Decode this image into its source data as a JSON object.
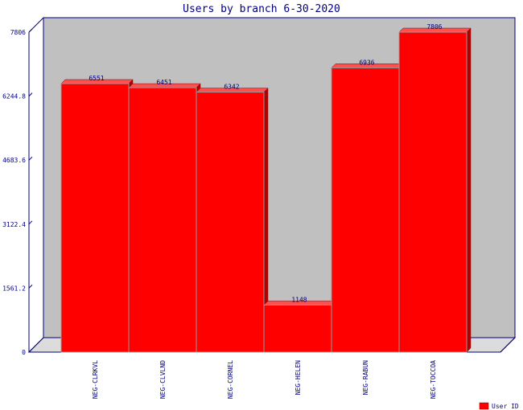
{
  "chart_data": {
    "type": "bar",
    "title": "Users by branch 6-30-2020",
    "xlabel": "",
    "ylabel": "",
    "categories": [
      "NEG-CLRKVL",
      "NEG-CLVLND",
      "NEG-CORNEL",
      "NEG-HELEN",
      "NEG-RABUN",
      "NEG-TOCCOA"
    ],
    "series": [
      {
        "name": "User ID",
        "values": [
          6551,
          6451,
          6342,
          1148,
          6936,
          7806
        ]
      }
    ],
    "ylim": [
      0,
      7806
    ],
    "yticks": [
      0,
      1561.2,
      3122.4,
      4683.6,
      6244.8,
      7806
    ],
    "ytick_labels": [
      "0",
      "1561.2",
      "3122.4",
      "4683.6",
      "6244.8",
      "7806"
    ],
    "grid": false,
    "legend_position": "bottom-right",
    "colors": {
      "bar": "#ff0000",
      "bar_top": "#ff5050",
      "bar_side": "#b00000",
      "plot_back": "#c0c0c0",
      "floor": "#dcdcdc",
      "axis": "#000080",
      "label_text": "#000080"
    }
  }
}
